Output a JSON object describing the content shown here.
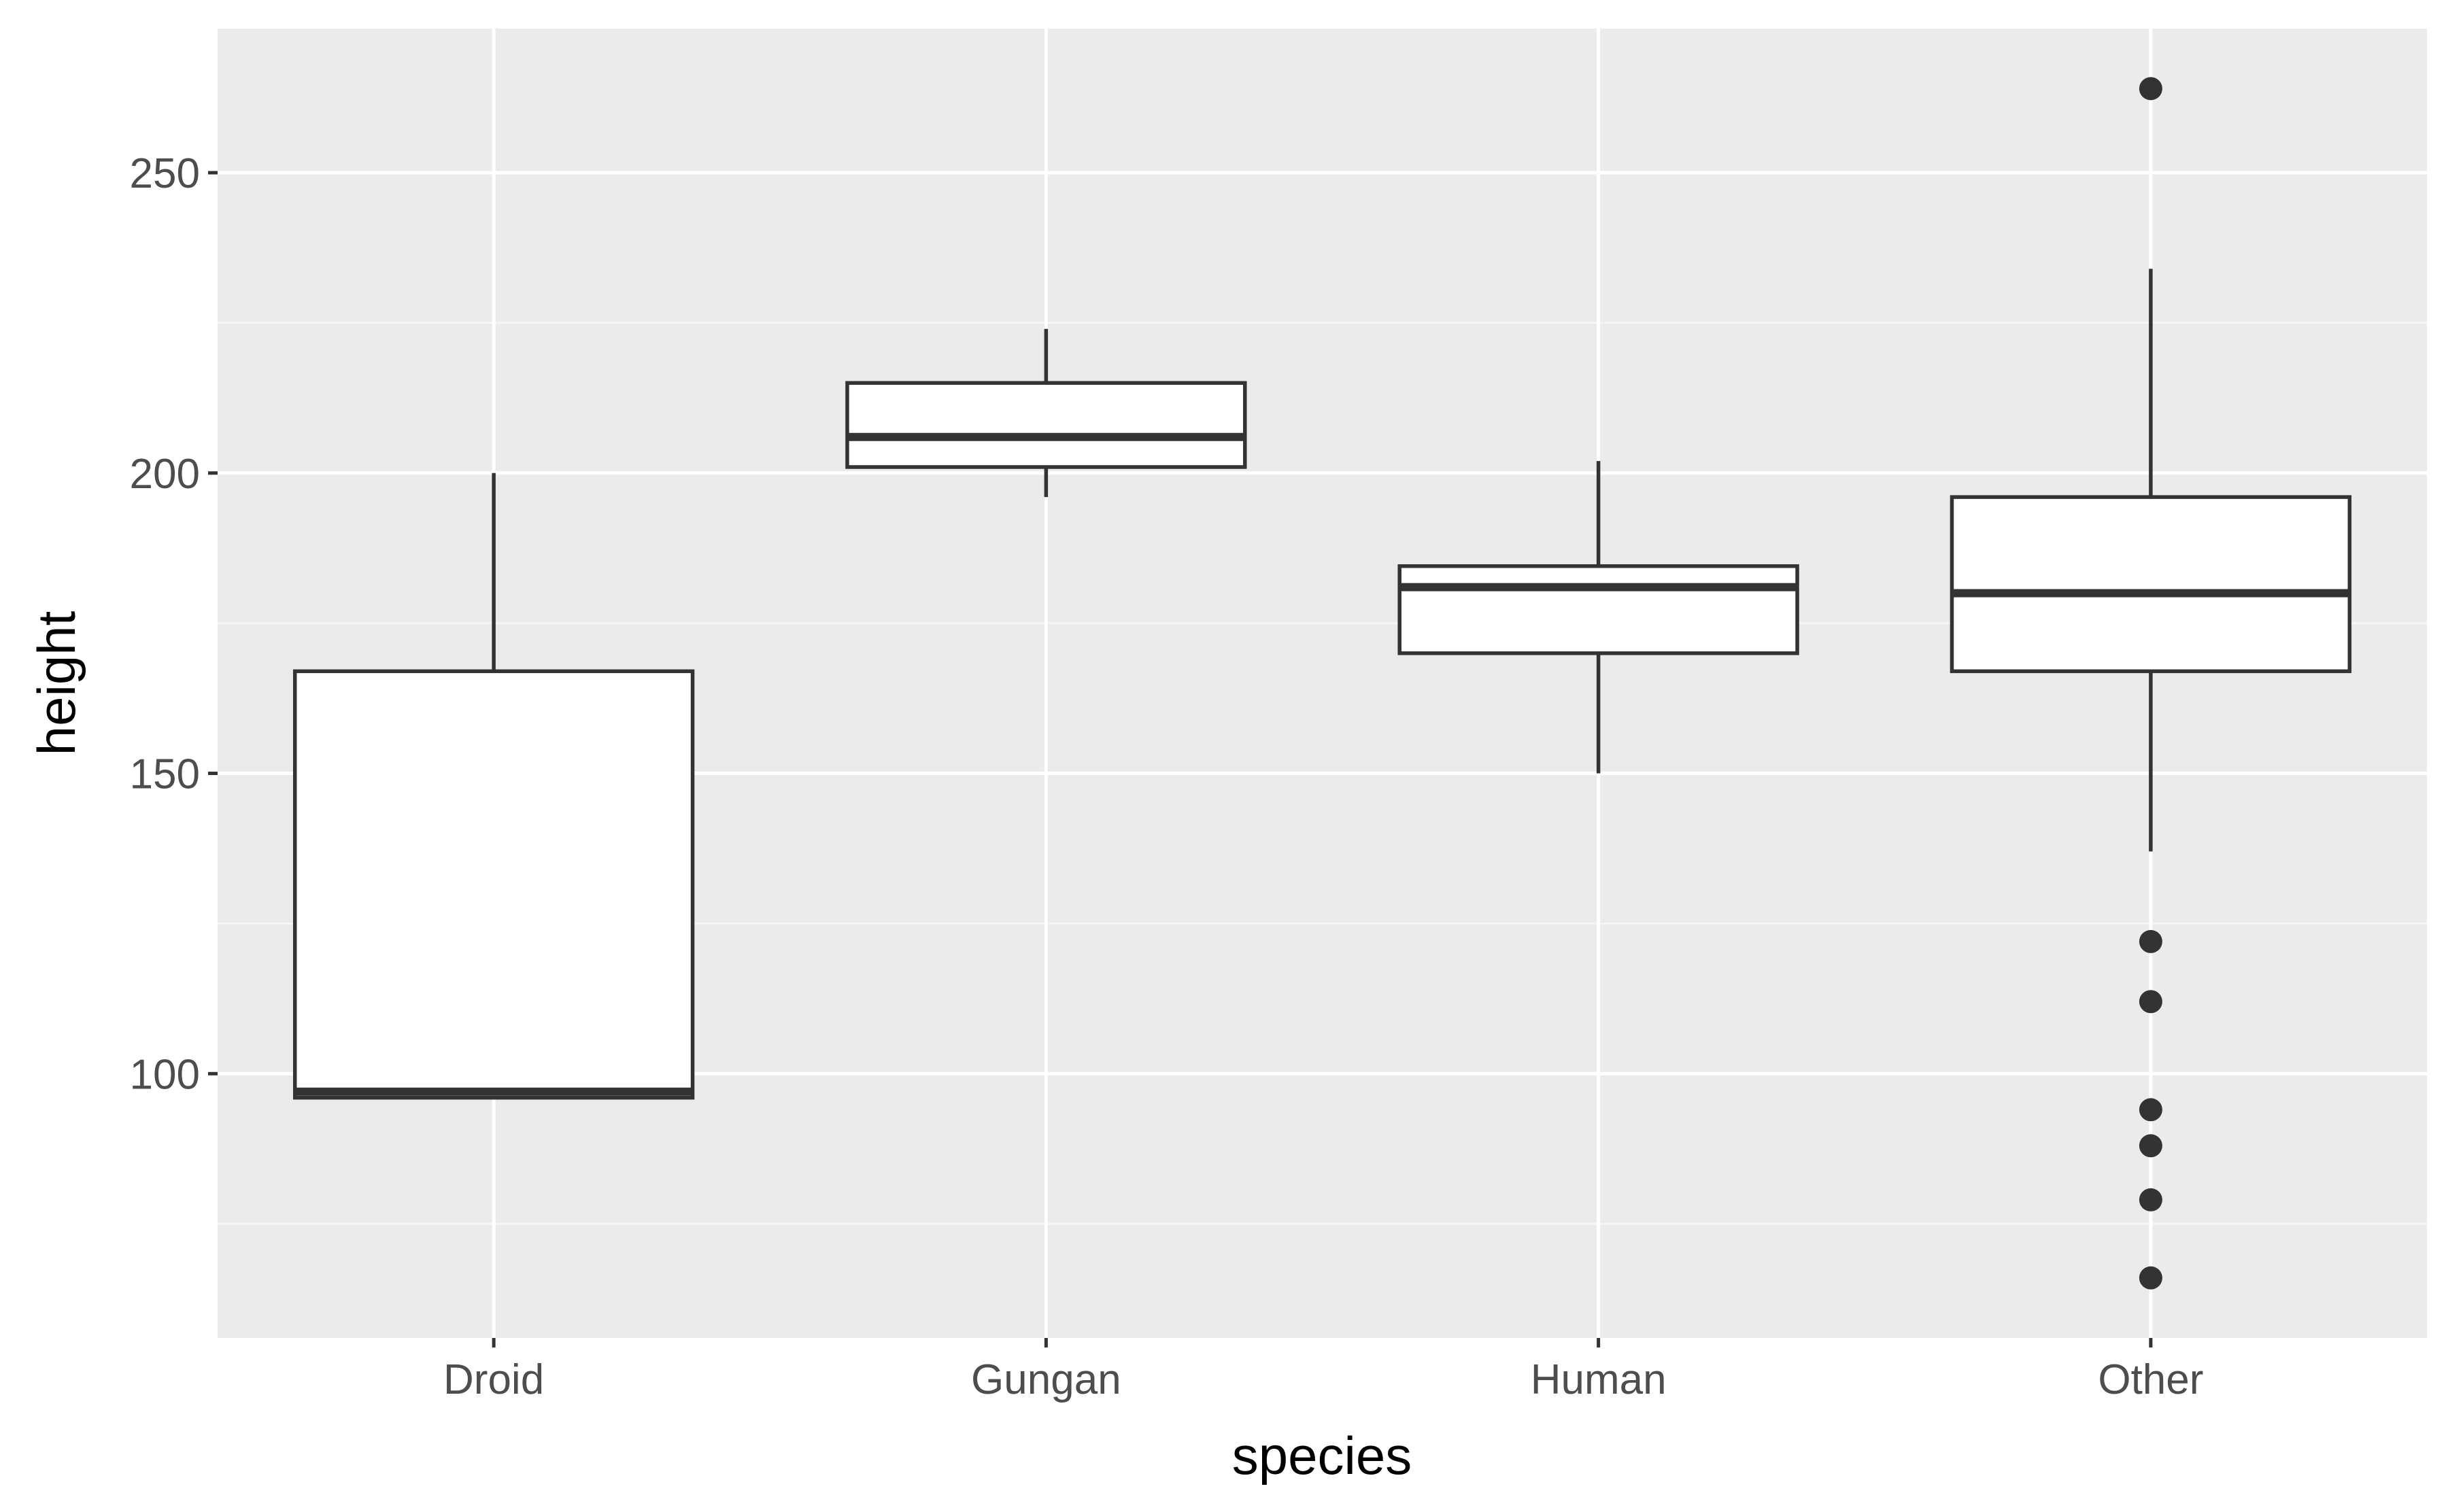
{
  "colors": {
    "panel_background": "#EBEBEB",
    "grid_major": "#FFFFFF",
    "grid_minor": "#F5F5F5",
    "box_fill": "#FFFFFF",
    "box_stroke": "#333333",
    "tick_text": "#4D4D4D",
    "axis_title": "#000000"
  },
  "chart_data": {
    "type": "boxplot",
    "xlabel": "species",
    "ylabel": "height",
    "categories": [
      "Droid",
      "Gungan",
      "Human",
      "Other"
    ],
    "ylim": [
      56,
      274
    ],
    "y_ticks": [
      100,
      150,
      200,
      250
    ],
    "y_minor_ticks": [
      75,
      125,
      175,
      225
    ],
    "grid": true,
    "legend": "none",
    "boxes": [
      {
        "category": "Droid",
        "lower_whisker": 96,
        "q1": 96,
        "median": 97,
        "q3": 167,
        "upper_whisker": 200,
        "outliers": []
      },
      {
        "category": "Gungan",
        "lower_whisker": 196,
        "q1": 201,
        "median": 206,
        "q3": 215,
        "upper_whisker": 224,
        "outliers": []
      },
      {
        "category": "Human",
        "lower_whisker": 150,
        "q1": 170,
        "median": 181,
        "q3": 184.5,
        "upper_whisker": 202,
        "outliers": []
      },
      {
        "category": "Other",
        "lower_whisker": 137,
        "q1": 167,
        "median": 180,
        "q3": 196,
        "upper_whisker": 234,
        "outliers": [
          264,
          122,
          112,
          94,
          88,
          79,
          66
        ]
      }
    ]
  }
}
